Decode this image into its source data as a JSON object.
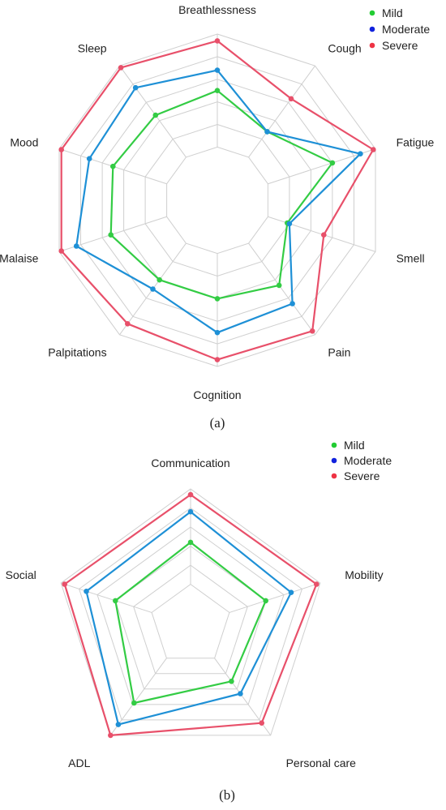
{
  "chart_data": [
    {
      "type": "radar",
      "panel_label": "(a)",
      "axes": [
        "Breathlessness",
        "Cough",
        "Fatigue",
        "Smell",
        "Pain",
        "Cognition",
        "Palpitations",
        "Malaise",
        "Mood",
        "Sleep"
      ],
      "rmax": 5,
      "rings": 5,
      "grid": true,
      "legend_position": "top-right",
      "series": [
        {
          "name": "Mild",
          "legend_color": "#22cc33",
          "color": "#33cc44",
          "values": [
            2.5,
            1.4,
            3.0,
            0.9,
            2.3,
            2.0,
            2.0,
            2.6,
            2.5,
            2.3
          ]
        },
        {
          "name": "Moderate",
          "legend_color": "#1122dd",
          "color": "#1e90d6",
          "values": [
            3.4,
            1.4,
            4.3,
            1.0,
            3.3,
            3.5,
            2.5,
            4.2,
            3.6,
            3.8
          ]
        },
        {
          "name": "Severe",
          "legend_color": "#ee3344",
          "color": "#e8506a",
          "values": [
            4.7,
            3.2,
            4.9,
            2.6,
            4.8,
            4.7,
            4.4,
            4.9,
            4.9,
            4.9
          ]
        }
      ]
    },
    {
      "type": "radar",
      "panel_label": "(b)",
      "axes": [
        "Communication",
        "Mobility",
        "Personal care",
        "ADL",
        "Social"
      ],
      "rmax": 5,
      "rings": 5,
      "grid": true,
      "legend_position": "top-right",
      "series": [
        {
          "name": "Mild",
          "legend_color": "#22cc33",
          "color": "#33cc44",
          "values": [
            2.2,
            2.0,
            1.5,
            2.9,
            2.0
          ]
        },
        {
          "name": "Moderate",
          "legend_color": "#1122dd",
          "color": "#1e90d6",
          "values": [
            3.8,
            3.4,
            2.3,
            4.3,
            3.6
          ]
        },
        {
          "name": "Severe",
          "legend_color": "#ee3344",
          "color": "#e8506a",
          "values": [
            4.7,
            4.8,
            4.2,
            5.0,
            4.8
          ]
        }
      ]
    }
  ]
}
